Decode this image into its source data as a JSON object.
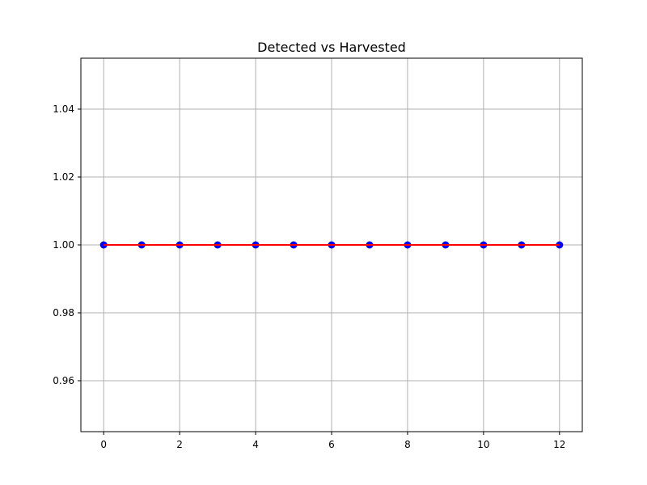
{
  "chart_data": {
    "type": "line",
    "title": "Detected vs Harvested",
    "xlabel": "",
    "ylabel": "",
    "xlim": [
      -0.6,
      12.6
    ],
    "ylim": [
      0.945,
      1.055
    ],
    "grid": true,
    "x_ticks": [
      0,
      2,
      4,
      6,
      8,
      10,
      12
    ],
    "x_tick_labels": [
      "0",
      "2",
      "4",
      "6",
      "8",
      "10",
      "12"
    ],
    "y_ticks": [
      0.96,
      0.98,
      1.0,
      1.02,
      1.04
    ],
    "y_tick_labels": [
      "0.96",
      "0.98",
      "1.00",
      "1.02",
      "1.04"
    ],
    "series": [
      {
        "style": "scatter",
        "color": "#0000ff",
        "x": [
          0,
          1,
          2,
          3,
          4,
          5,
          6,
          7,
          8,
          9,
          10,
          11,
          12
        ],
        "y": [
          1,
          1,
          1,
          1,
          1,
          1,
          1,
          1,
          1,
          1,
          1,
          1,
          1
        ]
      },
      {
        "style": "line",
        "color": "#ff0000",
        "x": [
          0,
          1,
          2,
          3,
          4,
          5,
          6,
          7,
          8,
          9,
          10,
          11,
          12
        ],
        "y": [
          1,
          1,
          1,
          1,
          1,
          1,
          1,
          1,
          1,
          1,
          1,
          1,
          1
        ]
      }
    ]
  }
}
